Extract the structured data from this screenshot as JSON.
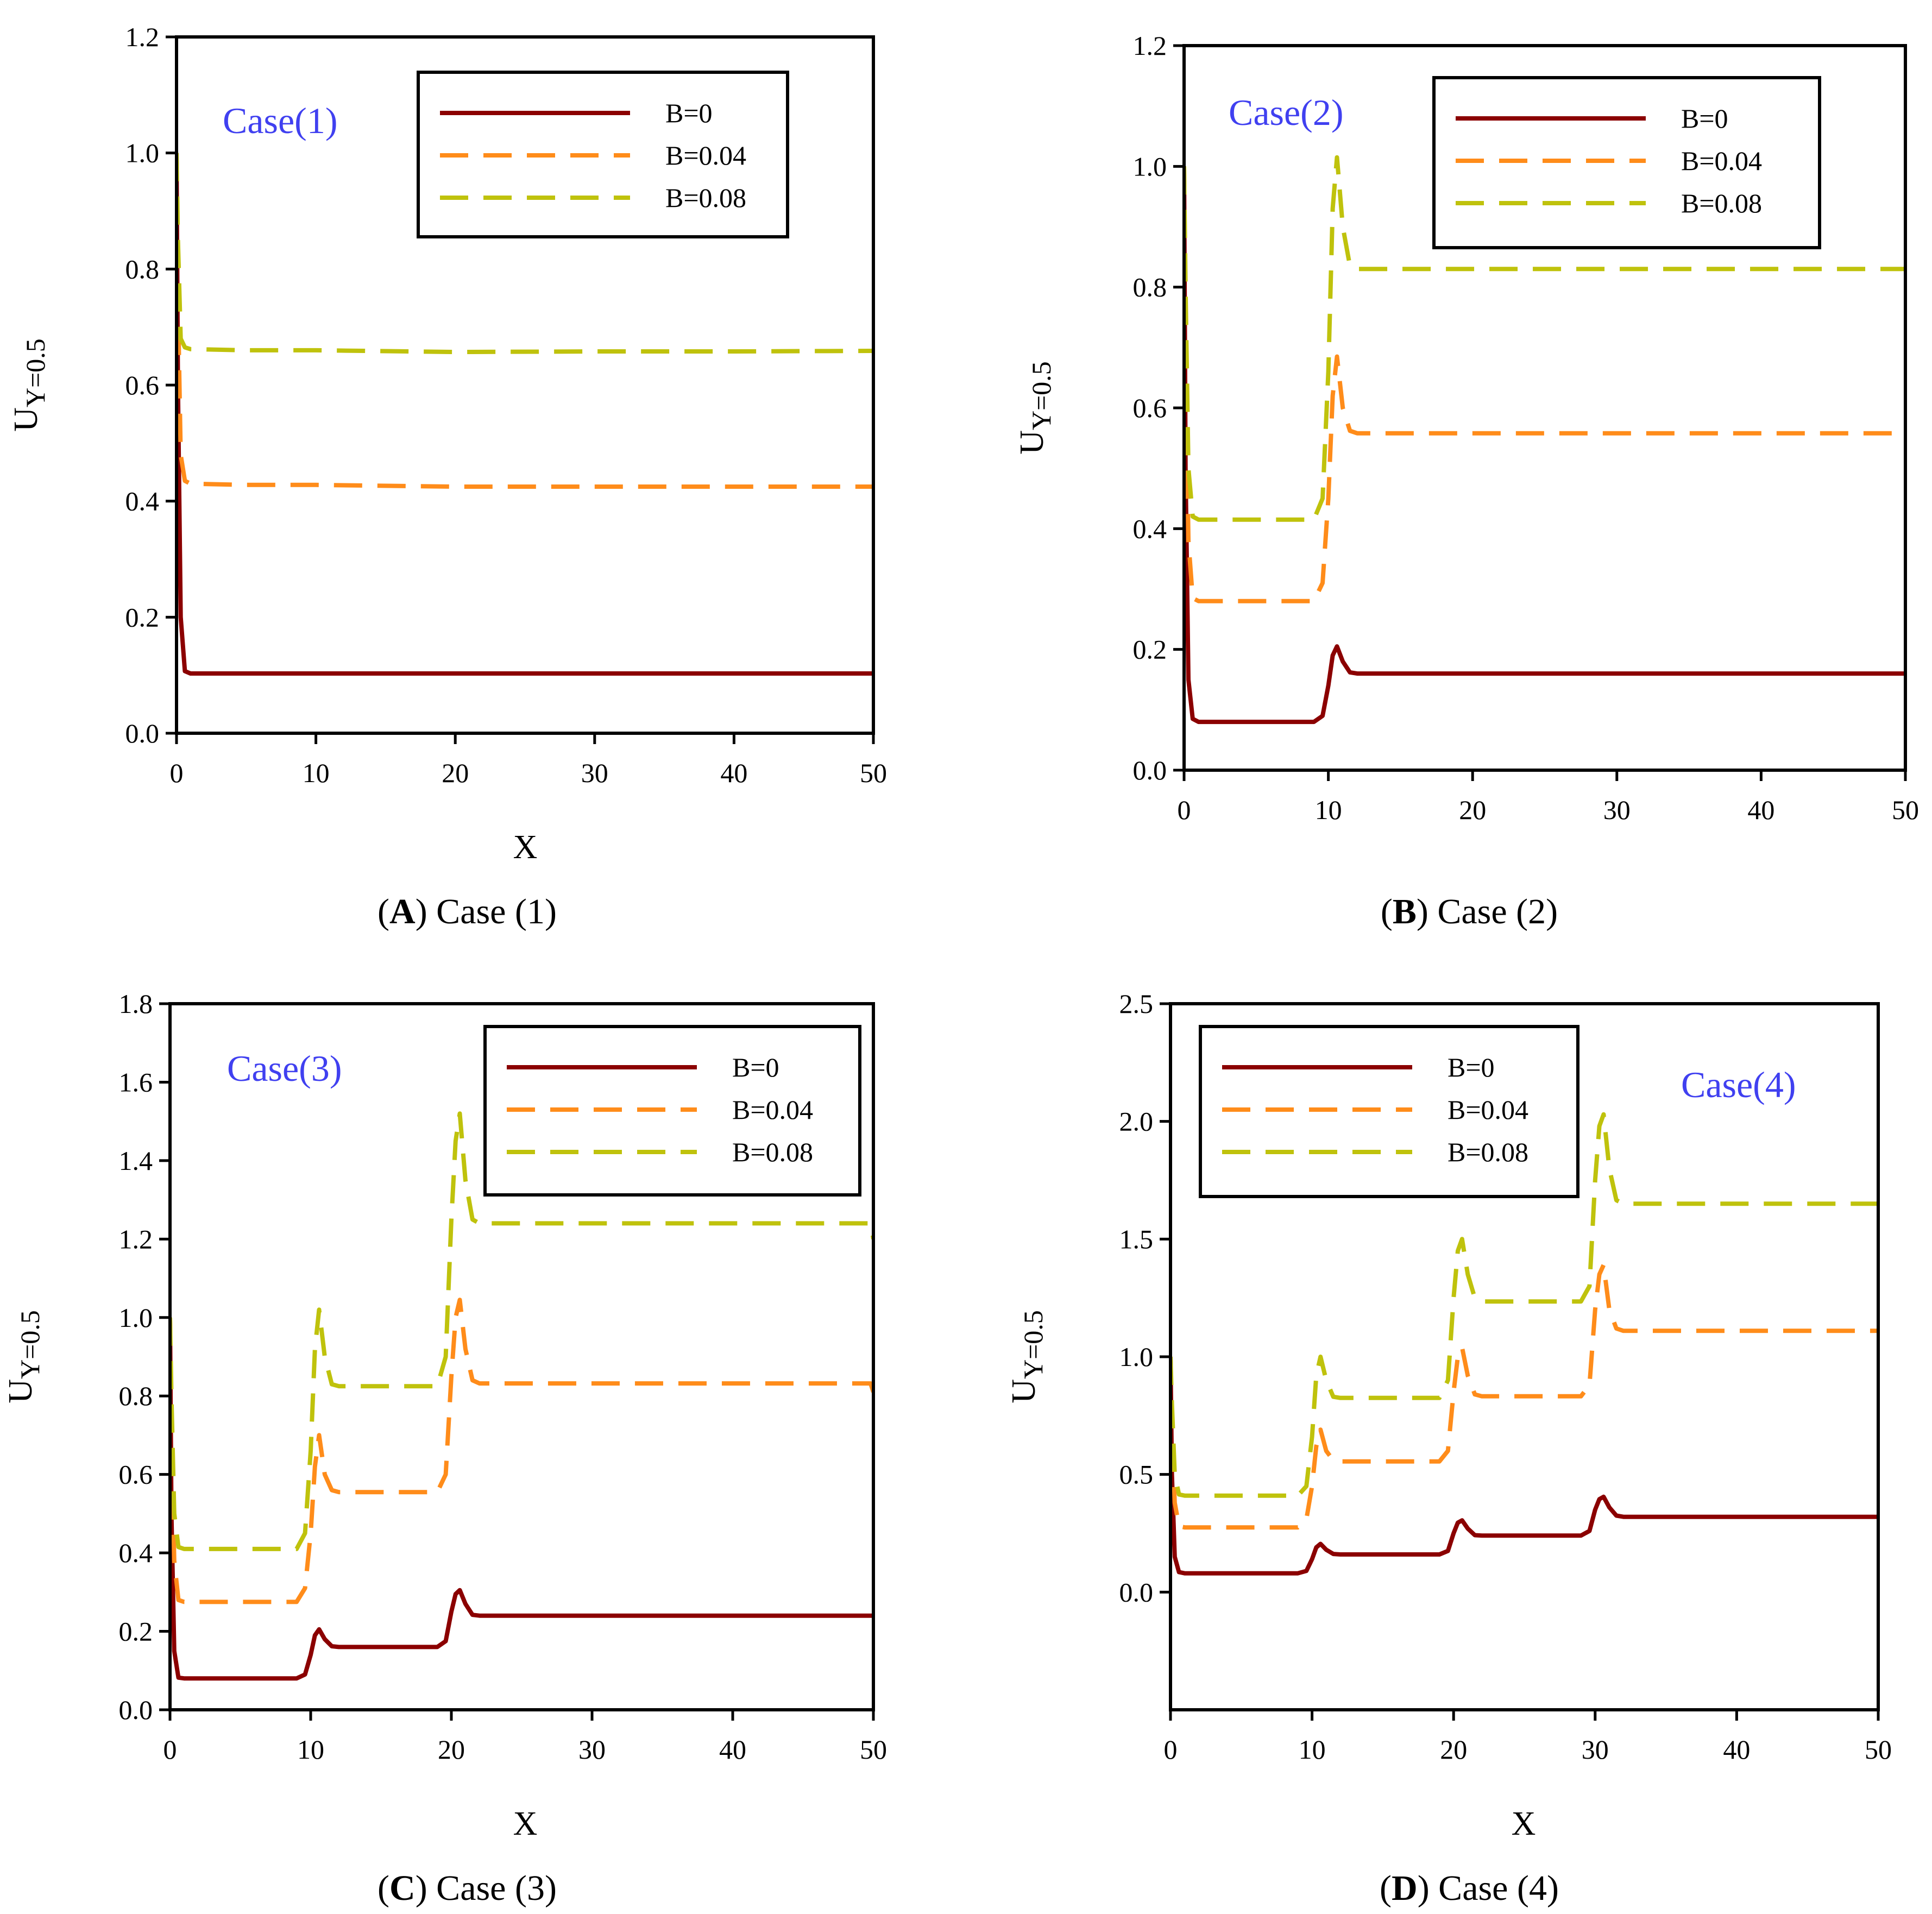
{
  "colors": {
    "B=0": "#8b0000",
    "B=0.04": "#ff8c1a",
    "B=0.08": "#bfc20c",
    "case_label": "#4040f0"
  },
  "chart_data": [
    {
      "type": "line",
      "panel": "A",
      "case_label": "Case(1)",
      "caption_letter": "A",
      "caption_rest": ") Case (1)",
      "xlabel": "X",
      "ylabel_main": "U",
      "ylabel_sub": "Y=0.5",
      "xlim": [
        0,
        50
      ],
      "ylim": [
        0.0,
        1.2
      ],
      "xticks": [
        "0",
        "10",
        "20",
        "30",
        "40",
        "50"
      ],
      "yticks": [
        "0.0",
        "0.2",
        "0.4",
        "0.6",
        "0.8",
        "1.0",
        "1.2"
      ],
      "legend_position": "top-right",
      "series": [
        {
          "name": "B=0",
          "style": "solid",
          "x": [
            0,
            0.1,
            0.3,
            0.6,
            1,
            5,
            10,
            20,
            30,
            40,
            50
          ],
          "y": [
            1.0,
            0.6,
            0.2,
            0.107,
            0.103,
            0.103,
            0.103,
            0.103,
            0.103,
            0.103,
            0.103
          ]
        },
        {
          "name": "B=0.04",
          "style": "dashed",
          "x": [
            0,
            0.1,
            0.3,
            0.6,
            1,
            5,
            10,
            20,
            30,
            40,
            50
          ],
          "y": [
            1.0,
            0.75,
            0.48,
            0.435,
            0.43,
            0.428,
            0.428,
            0.425,
            0.425,
            0.425,
            0.425
          ]
        },
        {
          "name": "B=0.08",
          "style": "dashed",
          "x": [
            0,
            0.1,
            0.3,
            0.6,
            1,
            5,
            10,
            20,
            30,
            40,
            50
          ],
          "y": [
            1.0,
            0.85,
            0.68,
            0.665,
            0.662,
            0.66,
            0.66,
            0.657,
            0.658,
            0.658,
            0.659
          ]
        }
      ]
    },
    {
      "type": "line",
      "panel": "B",
      "case_label": "Case(2)",
      "caption_letter": "B",
      "caption_rest": ") Case (2)",
      "xlabel": "",
      "ylabel_main": "U",
      "ylabel_sub": "Y=0.5",
      "xlim": [
        0,
        50
      ],
      "ylim": [
        0.0,
        1.2
      ],
      "xticks": [
        "0",
        "10",
        "20",
        "30",
        "40",
        "50"
      ],
      "yticks": [
        "0.0",
        "0.2",
        "0.4",
        "0.6",
        "0.8",
        "1.0",
        "1.2"
      ],
      "legend_position": "top-right",
      "series": [
        {
          "name": "B=0",
          "style": "solid",
          "x": [
            0,
            0.1,
            0.3,
            0.6,
            1,
            5,
            9,
            9.6,
            10,
            10.3,
            10.6,
            11,
            11.5,
            12,
            20,
            30,
            40,
            50
          ],
          "y": [
            1.0,
            0.5,
            0.15,
            0.085,
            0.08,
            0.08,
            0.08,
            0.09,
            0.14,
            0.19,
            0.205,
            0.18,
            0.162,
            0.16,
            0.16,
            0.16,
            0.16,
            0.16
          ]
        },
        {
          "name": "B=0.04",
          "style": "dashed",
          "x": [
            0,
            0.1,
            0.3,
            0.6,
            1,
            5,
            9,
            9.6,
            10,
            10.3,
            10.6,
            11,
            11.5,
            12,
            20,
            30,
            40,
            50
          ],
          "y": [
            1.0,
            0.7,
            0.38,
            0.285,
            0.28,
            0.28,
            0.28,
            0.31,
            0.45,
            0.62,
            0.685,
            0.6,
            0.562,
            0.558,
            0.558,
            0.558,
            0.558,
            0.558
          ]
        },
        {
          "name": "B=0.08",
          "style": "dashed",
          "x": [
            0,
            0.1,
            0.3,
            0.6,
            1,
            5,
            9,
            9.6,
            10,
            10.3,
            10.6,
            11,
            11.5,
            12,
            20,
            30,
            40,
            50
          ],
          "y": [
            1.0,
            0.8,
            0.5,
            0.42,
            0.415,
            0.415,
            0.415,
            0.45,
            0.66,
            0.93,
            1.015,
            0.9,
            0.835,
            0.83,
            0.83,
            0.83,
            0.83,
            0.83
          ]
        }
      ]
    },
    {
      "type": "line",
      "panel": "C",
      "case_label": "Case(3)",
      "caption_letter": "C",
      "caption_rest": ") Case (3)",
      "xlabel": "X",
      "ylabel_main": "U",
      "ylabel_sub": "Y=0.5",
      "xlim": [
        0,
        50
      ],
      "ylim": [
        0.0,
        1.8
      ],
      "xticks": [
        "0",
        "10",
        "20",
        "30",
        "40",
        "50"
      ],
      "yticks": [
        "0.0",
        "0.2",
        "0.4",
        "0.6",
        "0.8",
        "1.0",
        "1.2",
        "1.4",
        "1.6",
        "1.8"
      ],
      "legend_position": "top-right",
      "series": [
        {
          "name": "B=0",
          "style": "solid",
          "x": [
            0,
            0.1,
            0.3,
            0.6,
            1,
            5,
            9,
            9.6,
            10,
            10.3,
            10.6,
            11,
            11.5,
            12,
            19,
            19.6,
            20,
            20.3,
            20.6,
            21,
            21.5,
            22,
            30,
            40,
            50
          ],
          "y": [
            1.0,
            0.5,
            0.15,
            0.082,
            0.08,
            0.08,
            0.08,
            0.09,
            0.14,
            0.19,
            0.205,
            0.18,
            0.162,
            0.16,
            0.16,
            0.175,
            0.25,
            0.295,
            0.305,
            0.27,
            0.242,
            0.24,
            0.24,
            0.24,
            0.24
          ]
        },
        {
          "name": "B=0.04",
          "style": "dashed",
          "x": [
            0,
            0.1,
            0.3,
            0.6,
            1,
            5,
            9,
            9.6,
            10,
            10.3,
            10.6,
            11,
            11.5,
            12,
            19,
            19.6,
            20,
            20.3,
            20.6,
            21,
            21.5,
            22,
            30,
            40,
            49.8,
            50
          ],
          "y": [
            1.0,
            0.7,
            0.38,
            0.28,
            0.275,
            0.275,
            0.275,
            0.31,
            0.45,
            0.62,
            0.7,
            0.6,
            0.56,
            0.555,
            0.555,
            0.6,
            0.85,
            1.0,
            1.045,
            0.92,
            0.84,
            0.832,
            0.832,
            0.832,
            0.832,
            0.81
          ]
        },
        {
          "name": "B=0.08",
          "style": "dashed",
          "x": [
            0,
            0.1,
            0.3,
            0.6,
            1,
            5,
            9,
            9.6,
            10,
            10.3,
            10.6,
            11,
            11.5,
            12,
            19,
            19.6,
            20,
            20.3,
            20.6,
            21,
            21.5,
            22,
            30,
            40,
            49.8,
            50
          ],
          "y": [
            1.0,
            0.8,
            0.5,
            0.415,
            0.41,
            0.41,
            0.41,
            0.45,
            0.66,
            0.92,
            1.02,
            0.9,
            0.83,
            0.825,
            0.825,
            0.9,
            1.25,
            1.45,
            1.52,
            1.35,
            1.25,
            1.24,
            1.24,
            1.24,
            1.24,
            1.2
          ]
        }
      ]
    },
    {
      "type": "line",
      "panel": "D",
      "case_label": "Case(4)",
      "caption_letter": "D",
      "caption_rest": ") Case (4)",
      "xlabel": "X",
      "ylabel_main": "U",
      "ylabel_sub": "Y=0.5",
      "xlim": [
        0,
        50
      ],
      "ylim": [
        -0.5,
        2.5
      ],
      "xticks": [
        "0",
        "10",
        "20",
        "30",
        "40",
        "50"
      ],
      "yticks": [
        "0.0",
        "0.5",
        "1.0",
        "1.5",
        "2.0",
        "2.5"
      ],
      "legend_position": "top-left",
      "series": [
        {
          "name": "B=0",
          "style": "solid",
          "x": [
            0,
            0.1,
            0.3,
            0.6,
            1,
            5,
            9,
            9.6,
            10,
            10.3,
            10.6,
            11,
            11.5,
            12,
            19,
            19.6,
            20,
            20.3,
            20.6,
            21,
            21.5,
            22,
            29,
            29.6,
            30,
            30.3,
            30.6,
            31,
            31.5,
            32,
            40,
            50
          ],
          "y": [
            1.0,
            0.5,
            0.15,
            0.085,
            0.08,
            0.08,
            0.08,
            0.09,
            0.14,
            0.19,
            0.205,
            0.18,
            0.162,
            0.16,
            0.16,
            0.175,
            0.25,
            0.295,
            0.305,
            0.27,
            0.242,
            0.24,
            0.24,
            0.26,
            0.35,
            0.395,
            0.405,
            0.36,
            0.325,
            0.32,
            0.32,
            0.32
          ]
        },
        {
          "name": "B=0.04",
          "style": "dashed",
          "x": [
            0,
            0.1,
            0.3,
            0.6,
            1,
            5,
            9,
            9.6,
            10,
            10.3,
            10.6,
            11,
            11.5,
            12,
            19,
            19.6,
            20,
            20.3,
            20.6,
            21,
            21.5,
            22,
            29,
            29.6,
            30,
            30.3,
            30.6,
            31,
            31.5,
            32,
            40,
            50
          ],
          "y": [
            1.0,
            0.7,
            0.38,
            0.28,
            0.275,
            0.275,
            0.275,
            0.31,
            0.45,
            0.62,
            0.69,
            0.6,
            0.56,
            0.555,
            0.555,
            0.6,
            0.85,
            1.0,
            1.04,
            0.92,
            0.84,
            0.832,
            0.832,
            0.88,
            1.2,
            1.35,
            1.39,
            1.2,
            1.12,
            1.11,
            1.11,
            1.11
          ]
        },
        {
          "name": "B=0.08",
          "style": "dashed",
          "x": [
            0,
            0.1,
            0.3,
            0.6,
            1,
            5,
            9,
            9.6,
            10,
            10.3,
            10.6,
            11,
            11.5,
            12,
            19,
            19.6,
            20,
            20.3,
            20.6,
            21,
            21.5,
            22,
            29,
            29.6,
            30,
            30.3,
            30.6,
            31,
            31.5,
            32,
            40,
            50
          ],
          "y": [
            1.0,
            0.8,
            0.5,
            0.415,
            0.41,
            0.41,
            0.41,
            0.45,
            0.66,
            0.92,
            1.0,
            0.9,
            0.83,
            0.825,
            0.825,
            0.9,
            1.25,
            1.45,
            1.5,
            1.35,
            1.25,
            1.235,
            1.235,
            1.3,
            1.75,
            1.98,
            2.03,
            1.8,
            1.665,
            1.65,
            1.65,
            1.65
          ]
        }
      ]
    }
  ]
}
